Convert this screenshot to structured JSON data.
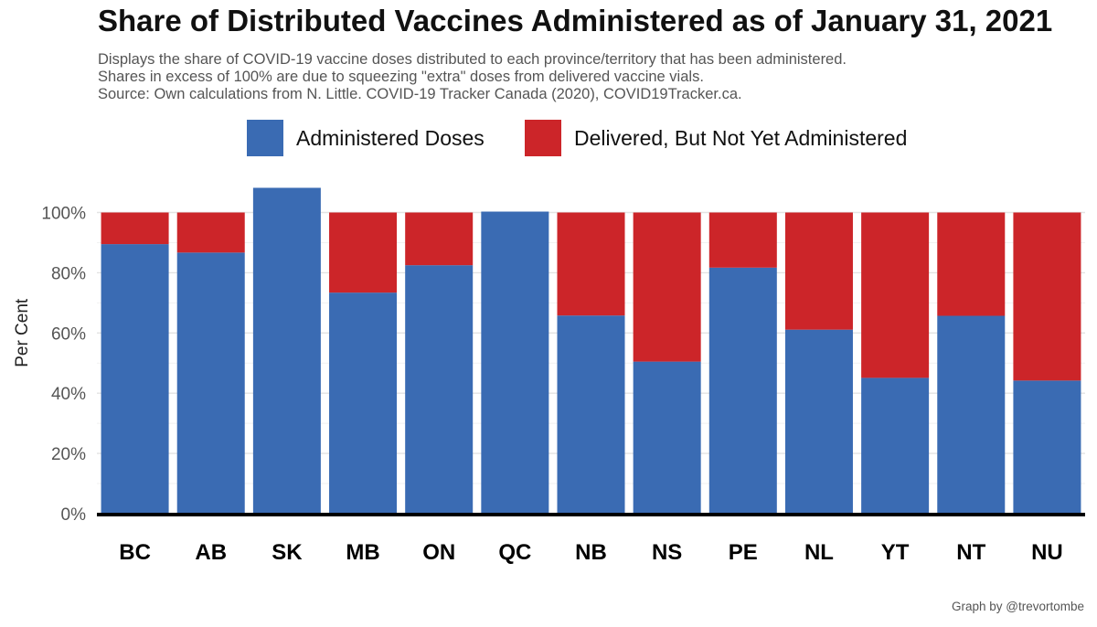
{
  "chart_data": {
    "type": "bar",
    "stacked": true,
    "title": "Share of Distributed Vaccines Administered as of January 31, 2021",
    "subtitle": [
      "Displays the share of COVID-19 vaccine doses distributed to each province/territory that has been administered.",
      "Shares in excess of 100% are due to squeezing \"extra\" doses from delivered vaccine vials.",
      "Source: Own calculations from N. Little. COVID-19 Tracker Canada (2020), COVID19Tracker.ca."
    ],
    "caption": "Graph by @trevortombe",
    "xlabel": "",
    "ylabel": "Per Cent",
    "ylim": [
      0,
      110
    ],
    "yticks": [
      0,
      20,
      40,
      60,
      80,
      100
    ],
    "ytick_labels": [
      "0%",
      "20%",
      "40%",
      "60%",
      "80%",
      "100%"
    ],
    "grid": "horizontal",
    "legend_position": "top",
    "categories": [
      "BC",
      "AB",
      "SK",
      "MB",
      "ON",
      "QC",
      "NB",
      "NS",
      "PE",
      "NL",
      "YT",
      "NT",
      "NU"
    ],
    "series": [
      {
        "name": "Administered Doses",
        "color": "#3a6bb3",
        "values": [
          89.5,
          86.7,
          108.2,
          73.4,
          82.5,
          100.3,
          65.8,
          50.5,
          81.7,
          61.1,
          45.1,
          65.7,
          44.2
        ]
      },
      {
        "name": "Delivered, But Not Yet Administered",
        "color": "#cc2529",
        "values": [
          10.5,
          13.3,
          0,
          26.6,
          17.5,
          0,
          34.2,
          49.5,
          18.3,
          38.9,
          54.9,
          34.3,
          55.8
        ]
      }
    ]
  }
}
